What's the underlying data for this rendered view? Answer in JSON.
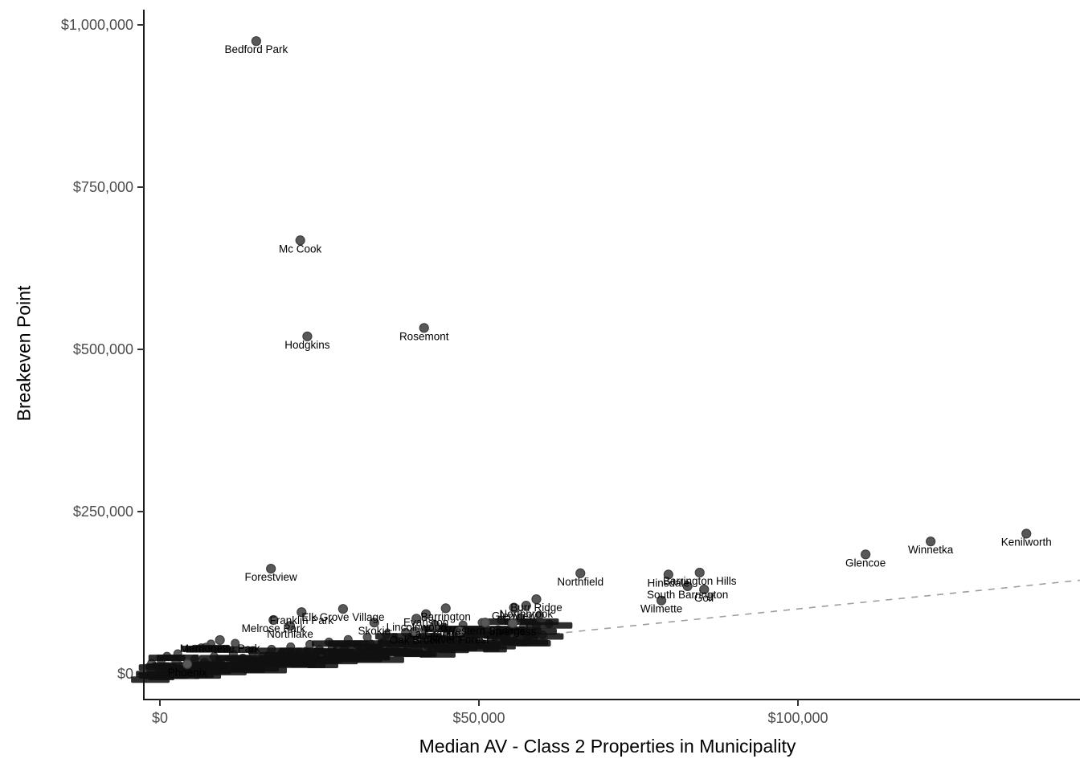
{
  "chart_data": {
    "type": "scatter",
    "title": "",
    "xlabel": "Median AV - Class 2 Properties in Municipality",
    "ylabel": "Breakeven Point",
    "grid": false,
    "legend": "none",
    "xlim": [
      -2500,
      144200
    ],
    "ylim": [
      -40000,
      1030000
    ],
    "x_ticks": [
      {
        "value": 0,
        "label": "$0"
      },
      {
        "value": 50000,
        "label": "$50,000"
      },
      {
        "value": 100000,
        "label": "$100,000"
      }
    ],
    "y_ticks": [
      {
        "value": 0,
        "label": "$0"
      },
      {
        "value": 250000,
        "label": "$250,000"
      },
      {
        "value": 500000,
        "label": "$500,000"
      },
      {
        "value": 750000,
        "label": "$750,000"
      },
      {
        "value": 1000000,
        "label": "$1,000,000"
      }
    ],
    "reference_line": {
      "style": "dashed",
      "color": "#9e9e9e",
      "from": {
        "x": -2500,
        "y": -2500
      },
      "to": {
        "x": 144200,
        "y": 144200
      },
      "meaning": "breakeven = median AV"
    },
    "point_style": {
      "fill": "#585858",
      "stroke": "#3e3e3e",
      "radius": 5.5
    },
    "labeled_points": [
      {
        "name": "Bedford Park",
        "x": 15100,
        "y": 975000
      },
      {
        "name": "Mc Cook",
        "x": 22000,
        "y": 668000
      },
      {
        "name": "Hodgkins",
        "x": 23100,
        "y": 520000
      },
      {
        "name": "Rosemont",
        "x": 41400,
        "y": 533000
      },
      {
        "name": "Kenilworth",
        "x": 135800,
        "y": 216000
      },
      {
        "name": "Winnetka",
        "x": 120800,
        "y": 204000
      },
      {
        "name": "Glencoe",
        "x": 110600,
        "y": 184000
      },
      {
        "name": "Forestview",
        "x": 17400,
        "y": 162000
      },
      {
        "name": "Northfield",
        "x": 65900,
        "y": 155000
      },
      {
        "name": "Barrington Hills",
        "x": 84600,
        "y": 156000
      },
      {
        "name": "Hinsdale",
        "x": 79700,
        "y": 153000
      },
      {
        "name": "South Barrington",
        "x": 82700,
        "y": 135000
      },
      {
        "name": "Golf",
        "x": 85300,
        "y": 130000
      },
      {
        "name": "Burr Ridge",
        "x": 59000,
        "y": 115000
      },
      {
        "name": "Wilmette",
        "x": 78600,
        "y": 113000
      },
      {
        "name": "Northbrook",
        "x": 57400,
        "y": 105000
      },
      {
        "name": "Glenview",
        "x": 55500,
        "y": 102000
      },
      {
        "name": "Barrington",
        "x": 44800,
        "y": 101000
      },
      {
        "name": "Elk Grove Village",
        "x": 28700,
        "y": 100000
      },
      {
        "name": "Franklin Park",
        "x": 22200,
        "y": 95000
      },
      {
        "name": "Evanston",
        "x": 41700,
        "y": 92000
      },
      {
        "name": "Lincolnwood",
        "x": 40200,
        "y": 85000
      },
      {
        "name": "Melrose Park",
        "x": 17800,
        "y": 83000
      },
      {
        "name": "Skokie",
        "x": 33600,
        "y": 79000
      },
      {
        "name": "Western Springs",
        "x": 51000,
        "y": 79000
      },
      {
        "name": "Inverness",
        "x": 55300,
        "y": 78000
      },
      {
        "name": "La Grange",
        "x": 43100,
        "y": 75000
      },
      {
        "name": "Northlake",
        "x": 20400,
        "y": 74000
      },
      {
        "name": "River Forest",
        "x": 47000,
        "y": 65500
      },
      {
        "name": "Oak Brook",
        "x": 40000,
        "y": 65000
      },
      {
        "name": "Merrionette Park",
        "x": 9400,
        "y": 52000
      },
      {
        "name": "Phoenix",
        "x": 4300,
        "y": 15000
      }
    ],
    "cluster_points": [
      [
        1000,
        11100
      ],
      [
        3000,
        13300
      ],
      [
        5000,
        15500
      ],
      [
        7000,
        17700
      ],
      [
        9000,
        19900
      ],
      [
        11000,
        22100
      ],
      [
        13000,
        24300
      ],
      [
        15000,
        26500
      ],
      [
        17000,
        28700
      ],
      [
        19000,
        30900
      ],
      [
        21000,
        33100
      ],
      [
        23000,
        35300
      ],
      [
        25000,
        37500
      ],
      [
        27000,
        39700
      ],
      [
        29000,
        41900
      ],
      [
        31000,
        44100
      ],
      [
        33000,
        46300
      ],
      [
        35000,
        48500
      ],
      [
        37000,
        50700
      ],
      [
        39000,
        52900
      ],
      [
        41000,
        55100
      ],
      [
        43000,
        57300
      ],
      [
        45000,
        59500
      ],
      [
        47000,
        61700
      ],
      [
        49000,
        63900
      ],
      [
        51000,
        66100
      ],
      [
        53000,
        68300
      ],
      [
        55000,
        70500
      ],
      [
        57000,
        72700
      ],
      [
        59000,
        74900
      ],
      [
        61000,
        77100
      ],
      [
        2000,
        4900
      ],
      [
        4000,
        6800
      ],
      [
        6000,
        8700
      ],
      [
        8000,
        10600
      ],
      [
        10000,
        12500
      ],
      [
        12000,
        14400
      ],
      [
        14000,
        16300
      ],
      [
        16000,
        18200
      ],
      [
        18000,
        20100
      ],
      [
        20000,
        22000
      ],
      [
        22000,
        23900
      ],
      [
        24000,
        25800
      ],
      [
        26000,
        27700
      ],
      [
        28000,
        29600
      ],
      [
        30000,
        31500
      ],
      [
        32000,
        33400
      ],
      [
        34000,
        35300
      ],
      [
        36000,
        37200
      ],
      [
        38000,
        39100
      ],
      [
        40000,
        41000
      ],
      [
        42000,
        42900
      ],
      [
        44000,
        44800
      ],
      [
        46000,
        46700
      ],
      [
        48000,
        48600
      ],
      [
        50000,
        50500
      ],
      [
        52000,
        52400
      ],
      [
        54000,
        54300
      ],
      [
        56000,
        56200
      ],
      [
        58000,
        58100
      ],
      [
        60000,
        60000
      ],
      [
        2500,
        19100
      ],
      [
        5500,
        22900
      ],
      [
        8500,
        26600
      ],
      [
        11500,
        30400
      ],
      [
        14500,
        34100
      ],
      [
        17500,
        37900
      ],
      [
        20500,
        41600
      ],
      [
        23500,
        45400
      ],
      [
        26500,
        49100
      ],
      [
        29500,
        52900
      ],
      [
        32500,
        56600
      ],
      [
        35500,
        60400
      ],
      [
        38500,
        64100
      ],
      [
        41500,
        67900
      ],
      [
        44500,
        71600
      ],
      [
        47500,
        75400
      ],
      [
        50500,
        79100
      ],
      [
        53500,
        82900
      ],
      [
        56500,
        86600
      ],
      [
        59500,
        90400
      ],
      [
        1500,
        1900
      ],
      [
        4500,
        4600
      ],
      [
        7500,
        7300
      ],
      [
        10500,
        10000
      ],
      [
        13500,
        12700
      ],
      [
        16500,
        15400
      ],
      [
        19500,
        18100
      ],
      [
        22500,
        20800
      ],
      [
        25500,
        23500
      ],
      [
        28500,
        26200
      ],
      [
        31500,
        28900
      ],
      [
        34500,
        31600
      ],
      [
        37500,
        34300
      ],
      [
        40500,
        37000
      ],
      [
        43500,
        39700
      ],
      [
        46500,
        42400
      ],
      [
        49500,
        45100
      ],
      [
        52500,
        47800
      ],
      [
        55500,
        50500
      ],
      [
        58500,
        53200
      ],
      [
        800,
        6800
      ],
      [
        4800,
        11000
      ],
      [
        8800,
        15200
      ],
      [
        12800,
        19400
      ],
      [
        16800,
        23600
      ],
      [
        20800,
        27800
      ],
      [
        24800,
        32000
      ],
      [
        28800,
        36200
      ],
      [
        32800,
        40400
      ],
      [
        36800,
        44600
      ],
      [
        40800,
        48800
      ],
      [
        44800,
        53000
      ],
      [
        48800,
        57200
      ],
      [
        52800,
        61400
      ],
      [
        56800,
        65600
      ],
      [
        -1500,
        1000
      ],
      [
        -300,
        2200
      ],
      [
        600,
        3500
      ],
      [
        200,
        5000
      ],
      [
        6500,
        40000
      ],
      [
        8000,
        46000
      ],
      [
        11800,
        47000
      ],
      [
        7200,
        41000
      ],
      [
        -1300,
        16000
      ],
      [
        200,
        21000
      ],
      [
        1100,
        27000
      ],
      [
        2800,
        31000
      ]
    ],
    "annotation_note": "dense overlapping municipality labels form an unreadable dark band along the lower-left trend"
  },
  "colors": {
    "background": "#ffffff",
    "axis_line": "#1a1a1a",
    "tick_mark": "#333333",
    "tick_label": "#4d4d4d",
    "point_fill": "#585858",
    "point_stroke": "#3e3e3e",
    "dashed_line": "#9e9e9e",
    "label_text": "#000000",
    "smudge": "#101010"
  }
}
